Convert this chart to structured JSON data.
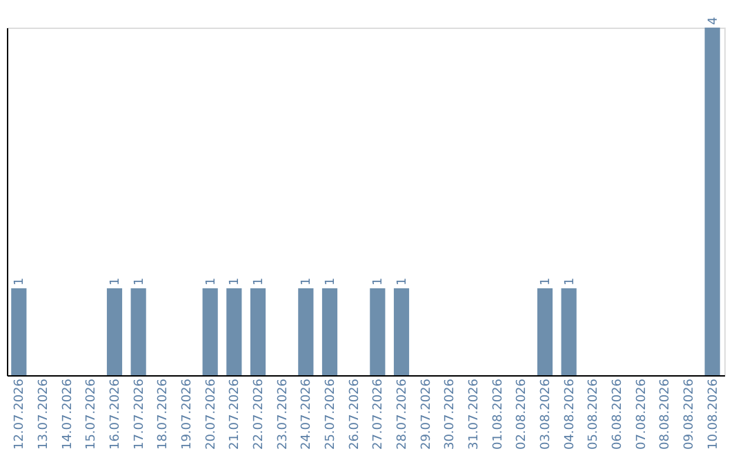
{
  "chart_data": {
    "type": "bar",
    "categories": [
      "12.07.2026",
      "13.07.2026",
      "14.07.2026",
      "15.07.2026",
      "16.07.2026",
      "17.07.2026",
      "18.07.2026",
      "19.07.2026",
      "20.07.2026",
      "21.07.2026",
      "22.07.2026",
      "23.07.2026",
      "24.07.2026",
      "25.07.2026",
      "26.07.2026",
      "27.07.2026",
      "28.07.2026",
      "29.07.2026",
      "30.07.2026",
      "31.07.2026",
      "01.08.2026",
      "02.08.2026",
      "03.08.2026",
      "04.08.2026",
      "05.08.2026",
      "06.08.2026",
      "07.08.2026",
      "08.08.2026",
      "09.08.2026",
      "10.08.2026"
    ],
    "values": [
      1,
      0,
      0,
      0,
      1,
      1,
      0,
      0,
      1,
      1,
      1,
      0,
      1,
      1,
      0,
      1,
      1,
      0,
      0,
      0,
      0,
      0,
      1,
      1,
      0,
      0,
      0,
      0,
      0,
      4
    ],
    "value_labels": [
      "1",
      null,
      null,
      null,
      "1",
      "1",
      null,
      null,
      "1",
      "1",
      "1",
      null,
      "1",
      "1",
      null,
      "1",
      "1",
      null,
      null,
      null,
      null,
      null,
      "1",
      "1",
      null,
      null,
      null,
      null,
      null,
      "4"
    ],
    "color": "#6e8fad",
    "tick_labels": "x",
    "grid": false
  }
}
